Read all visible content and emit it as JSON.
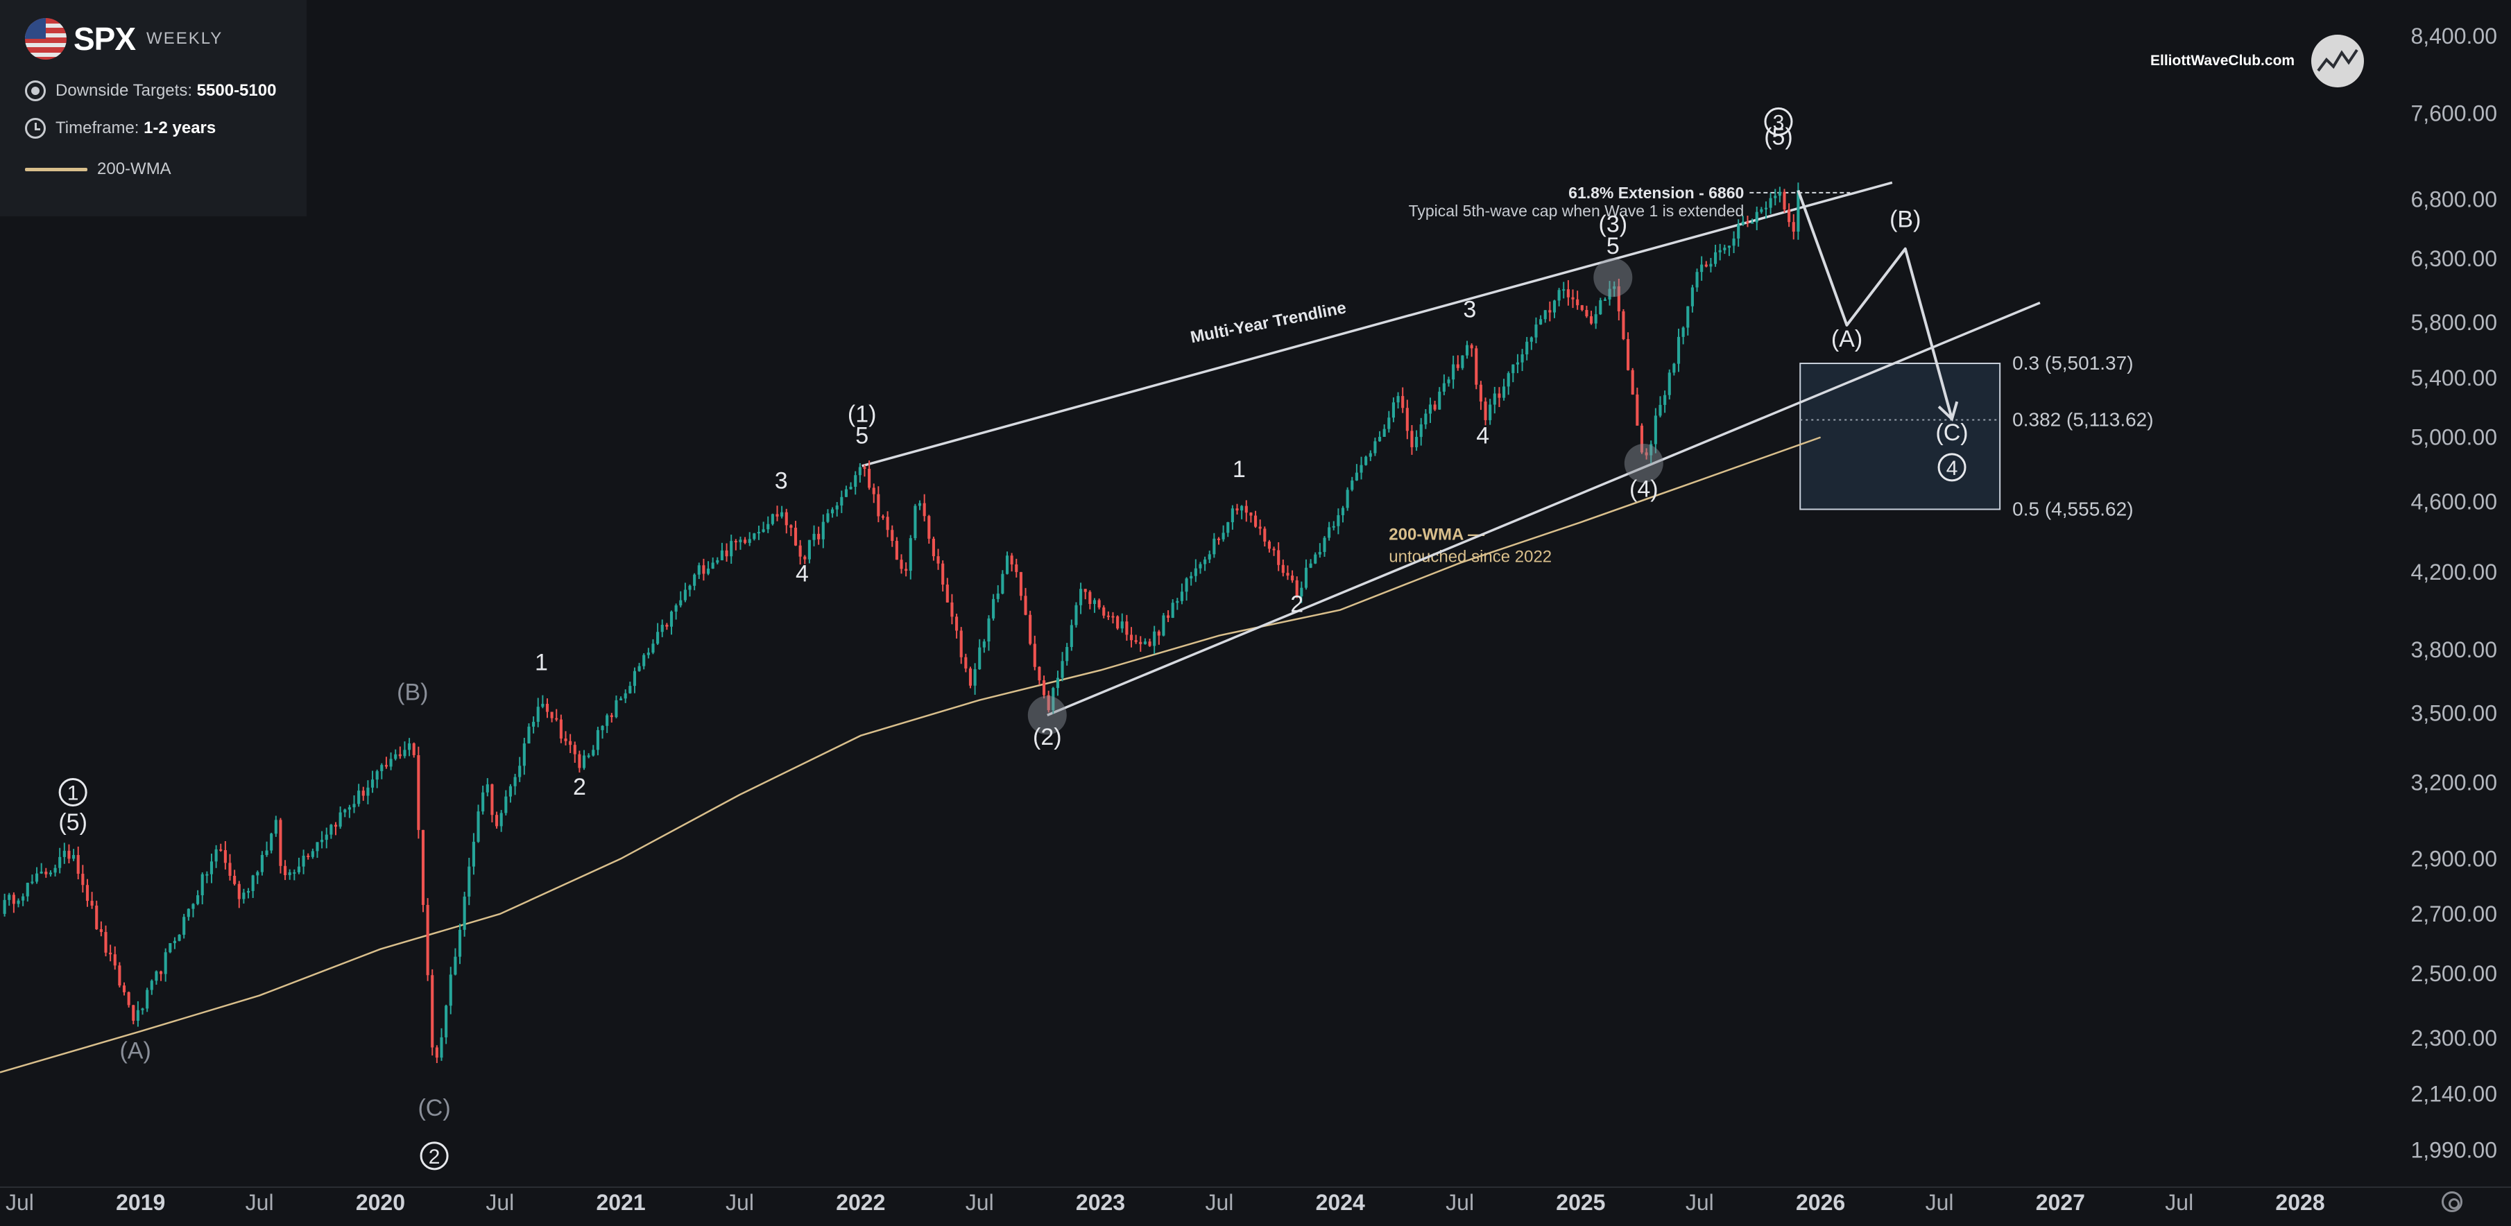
{
  "legend": {
    "ticker": "SPX",
    "interval": "WEEKLY",
    "items": [
      {
        "icon": "target-icon",
        "label": "Downside Targets:",
        "value": "5500-5100"
      },
      {
        "icon": "clock-icon",
        "label": "Timeframe:",
        "value": "1-2 years"
      },
      {
        "icon": "line-swatch-icon",
        "label": "200-WMA",
        "value": ""
      }
    ]
  },
  "brand": {
    "name": "ElliottWaveClub.com"
  },
  "colors": {
    "up": "#26a69a",
    "down": "#ef5350",
    "wma": "#d9bf8c",
    "annotation": "#d7dae0",
    "background": "#121418",
    "muted": "#8a8f99"
  },
  "chart_data": {
    "type": "candlestick",
    "title": "SPX",
    "y_scale": "log",
    "ylim": [
      1900,
      8800
    ],
    "xlim": [
      "2018-06-01",
      "2028-06-01"
    ],
    "y_ticks": [
      "8,400.00",
      "7,600.00",
      "6,800.00",
      "6,300.00",
      "5,800.00",
      "5,400.00",
      "5,000.00",
      "4,600.00",
      "4,200.00",
      "3,800.00",
      "3,500.00",
      "3,200.00",
      "2,900.00",
      "2,700.00",
      "2,500.00",
      "2,300.00",
      "2,140.00",
      "1,990.00"
    ],
    "y_tick_values": [
      8400,
      7600,
      6800,
      6300,
      5800,
      5400,
      5000,
      4600,
      4200,
      3800,
      3500,
      3200,
      2900,
      2700,
      2500,
      2300,
      2140,
      1990
    ],
    "x_ticks": [
      {
        "label": "Jul",
        "date": "2018-07-01",
        "bold": false
      },
      {
        "label": "2019",
        "date": "2019-01-01",
        "bold": true
      },
      {
        "label": "Jul",
        "date": "2019-07-01",
        "bold": false
      },
      {
        "label": "2020",
        "date": "2020-01-01",
        "bold": true
      },
      {
        "label": "Jul",
        "date": "2020-07-01",
        "bold": false
      },
      {
        "label": "2021",
        "date": "2021-01-01",
        "bold": true
      },
      {
        "label": "Jul",
        "date": "2021-07-01",
        "bold": false
      },
      {
        "label": "2022",
        "date": "2022-01-01",
        "bold": true
      },
      {
        "label": "Jul",
        "date": "2022-07-01",
        "bold": false
      },
      {
        "label": "2023",
        "date": "2023-01-01",
        "bold": true
      },
      {
        "label": "Jul",
        "date": "2023-07-01",
        "bold": false
      },
      {
        "label": "2024",
        "date": "2024-01-01",
        "bold": true
      },
      {
        "label": "Jul",
        "date": "2024-07-01",
        "bold": false
      },
      {
        "label": "2025",
        "date": "2025-01-01",
        "bold": true
      },
      {
        "label": "Jul",
        "date": "2025-07-01",
        "bold": false
      },
      {
        "label": "2026",
        "date": "2026-01-01",
        "bold": true
      },
      {
        "label": "Jul",
        "date": "2026-07-01",
        "bold": false
      },
      {
        "label": "2027",
        "date": "2027-01-01",
        "bold": true
      },
      {
        "label": "Jul",
        "date": "2027-07-01",
        "bold": false
      },
      {
        "label": "2028",
        "date": "2028-01-01",
        "bold": true
      }
    ],
    "price_path": [
      [
        "2018-06-01",
        2720
      ],
      [
        "2018-09-20",
        2930
      ],
      [
        "2018-10-29",
        2640
      ],
      [
        "2018-12-24",
        2350
      ],
      [
        "2019-04-30",
        2945
      ],
      [
        "2019-06-03",
        2744
      ],
      [
        "2019-07-26",
        3025
      ],
      [
        "2019-08-05",
        2822
      ],
      [
        "2019-11-01",
        3066
      ],
      [
        "2020-02-19",
        3386
      ],
      [
        "2020-03-23",
        2192
      ],
      [
        "2020-06-08",
        3232
      ],
      [
        "2020-06-26",
        3009
      ],
      [
        "2020-09-02",
        3580
      ],
      [
        "2020-10-30",
        3270
      ],
      [
        "2021-04-30",
        4211
      ],
      [
        "2021-09-02",
        4545
      ],
      [
        "2021-10-04",
        4278
      ],
      [
        "2022-01-03",
        4818
      ],
      [
        "2022-03-08",
        4170
      ],
      [
        "2022-03-29",
        4637
      ],
      [
        "2022-06-16",
        3636
      ],
      [
        "2022-08-16",
        4325
      ],
      [
        "2022-10-12",
        3491
      ],
      [
        "2022-12-01",
        4100
      ],
      [
        "2023-03-13",
        3808
      ],
      [
        "2023-07-31",
        4607
      ],
      [
        "2023-10-27",
        4103
      ],
      [
        "2024-03-28",
        5264
      ],
      [
        "2024-04-19",
        4953
      ],
      [
        "2024-07-16",
        5669
      ],
      [
        "2024-08-05",
        5119
      ],
      [
        "2024-12-06",
        6090
      ],
      [
        "2025-01-13",
        5773
      ],
      [
        "2025-02-19",
        6147
      ],
      [
        "2025-04-07",
        4835
      ],
      [
        "2025-06-30",
        6205
      ],
      [
        "2025-10-08",
        6750
      ],
      [
        "2025-10-29",
        6890
      ],
      [
        "2025-11-20",
        6540
      ],
      [
        "2025-11-28",
        6850
      ]
    ],
    "wma_200": [
      [
        "2018-06-01",
        2200
      ],
      [
        "2019-01-01",
        2320
      ],
      [
        "2019-07-01",
        2430
      ],
      [
        "2020-01-01",
        2580
      ],
      [
        "2020-07-01",
        2700
      ],
      [
        "2021-01-01",
        2900
      ],
      [
        "2021-07-01",
        3150
      ],
      [
        "2022-01-01",
        3400
      ],
      [
        "2022-07-01",
        3560
      ],
      [
        "2023-01-01",
        3700
      ],
      [
        "2023-07-01",
        3870
      ],
      [
        "2024-01-01",
        4000
      ],
      [
        "2024-07-01",
        4250
      ],
      [
        "2025-01-01",
        4480
      ],
      [
        "2025-07-01",
        4730
      ],
      [
        "2026-01-01",
        5000
      ]
    ],
    "projection": [
      [
        "2025-11-28",
        6880
      ],
      [
        "2026-02-10",
        5780
      ],
      [
        "2026-05-10",
        6380
      ],
      [
        "2026-07-20",
        5120
      ]
    ],
    "lines": [
      {
        "name": "multi-year-trendline",
        "from": [
          "2022-01-03",
          4818
        ],
        "to": [
          "2026-04-20",
          6950
        ],
        "label": "Multi-Year Trendline",
        "label_at": [
          "2023-09-15",
          5760
        ],
        "label_angle": -11
      },
      {
        "name": "lower-channel-line",
        "from": [
          "2022-10-12",
          3491
        ],
        "to": [
          "2026-12-01",
          5950
        ],
        "label": "",
        "label_at": null,
        "label_angle": 0
      }
    ],
    "extension": {
      "label": "61.8% Extension - 6860",
      "note": "Typical 5th-wave cap when Wave 1 is extended",
      "value": 6860,
      "from": "2025-09-15",
      "to": "2026-02-15"
    },
    "target_box": {
      "from": "2025-12-01",
      "to": "2026-10-01",
      "top": 5501.37,
      "bottom": 4555.62,
      "mid": 5113.62,
      "labels": [
        {
          "text": "0.3 (5,501.37)",
          "value": 5501.37
        },
        {
          "text": "0.382 (5,113.62)",
          "value": 5113.62
        },
        {
          "text": "0.5 (4,555.62)",
          "value": 4555.62
        }
      ]
    },
    "wma_note": {
      "title": "200-WMA —",
      "text": "untouched since 2022",
      "at": [
        "2024-03-15",
        4380
      ]
    },
    "highlights": [
      [
        "2022-10-12",
        3491
      ],
      [
        "2025-02-19",
        6147
      ],
      [
        "2025-04-07",
        4835
      ]
    ],
    "wave_labels": [
      {
        "text": "(A)",
        "date": "2018-12-24",
        "price": 2240,
        "style": "muted"
      },
      {
        "text": "(B)",
        "date": "2020-02-19",
        "price": 3560,
        "style": "muted"
      },
      {
        "text": "(C)",
        "date": "2020-03-23",
        "price": 2080,
        "style": "muted"
      },
      {
        "text": "(5)",
        "date": "2018-09-20",
        "price": 3010,
        "style": "plain"
      },
      {
        "text": "1",
        "date": "2020-09-02",
        "price": 3700,
        "style": "plain"
      },
      {
        "text": "2",
        "date": "2020-10-30",
        "price": 3150,
        "style": "plain"
      },
      {
        "text": "3",
        "date": "2021-09-02",
        "price": 4680,
        "style": "plain"
      },
      {
        "text": "4",
        "date": "2021-10-04",
        "price": 4150,
        "style": "plain"
      },
      {
        "text": "(1)",
        "date": "2022-01-03",
        "price": 5100,
        "style": "plain"
      },
      {
        "text": "5",
        "date": "2022-01-03",
        "price": 4960,
        "style": "plain"
      },
      {
        "text": "(2)",
        "date": "2022-10-12",
        "price": 3360,
        "style": "plain"
      },
      {
        "text": "1",
        "date": "2023-07-31",
        "price": 4750,
        "style": "plain"
      },
      {
        "text": "2",
        "date": "2023-10-27",
        "price": 3990,
        "style": "plain"
      },
      {
        "text": "3",
        "date": "2024-07-16",
        "price": 5840,
        "style": "plain"
      },
      {
        "text": "4",
        "date": "2024-08-05",
        "price": 4960,
        "style": "plain"
      },
      {
        "text": "(3)",
        "date": "2025-02-19",
        "price": 6520,
        "style": "plain"
      },
      {
        "text": "5",
        "date": "2025-02-19",
        "price": 6340,
        "style": "plain"
      },
      {
        "text": "(4)",
        "date": "2025-04-07",
        "price": 4630,
        "style": "plain"
      },
      {
        "text": "(5)",
        "date": "2025-10-29",
        "price": 7300,
        "style": "plain"
      },
      {
        "text": "(A)",
        "date": "2026-02-10",
        "price": 5620,
        "style": "plain"
      },
      {
        "text": "(B)",
        "date": "2026-05-10",
        "price": 6560,
        "style": "plain"
      },
      {
        "text": "(C)",
        "date": "2026-07-20",
        "price": 4980,
        "style": "plain"
      }
    ],
    "circled_labels": [
      {
        "text": "1",
        "date": "2018-09-20",
        "price": 3160
      },
      {
        "text": "2",
        "date": "2020-03-23",
        "price": 1975
      },
      {
        "text": "3",
        "date": "2025-10-29",
        "price": 7520
      },
      {
        "text": "4",
        "date": "2026-07-20",
        "price": 4810
      }
    ]
  }
}
